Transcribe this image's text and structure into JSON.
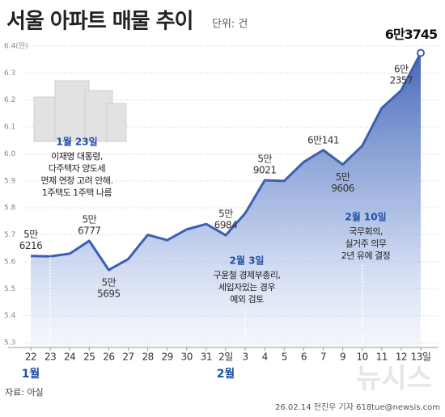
{
  "chart_data": {
    "type": "area",
    "title": "서울 아파트 매물 추이",
    "unit": "단위: 건",
    "categories": [
      "22",
      "23",
      "24",
      "25",
      "26",
      "27",
      "28",
      "29",
      "30",
      "31",
      "2일",
      "3",
      "4",
      "5",
      "6",
      "7",
      "9",
      "10",
      "11",
      "12",
      "13일"
    ],
    "month_labels": [
      "1월",
      "2월"
    ],
    "values": [
      5.6216,
      5.62,
      5.63,
      5.6777,
      5.5695,
      5.61,
      5.7,
      5.68,
      5.72,
      5.74,
      5.6984,
      5.78,
      5.9021,
      5.9,
      5.97,
      6.0141,
      5.9606,
      6.03,
      6.17,
      6.2357,
      6.3745
    ],
    "value_labels": [
      [
        "5만",
        "6216"
      ],
      null,
      null,
      [
        "5만",
        "6777"
      ],
      [
        "5만",
        "5695"
      ],
      null,
      null,
      null,
      null,
      null,
      [
        "5만",
        "6984"
      ],
      null,
      [
        "5만",
        "9021"
      ],
      null,
      null,
      [
        "6만141"
      ],
      [
        "5만",
        "9606"
      ],
      null,
      null,
      [
        "6만",
        "2357"
      ],
      [
        "6만3745"
      ]
    ],
    "color": "#3b5fb3",
    "ylim": [
      5.3,
      6.4
    ],
    "yticks": [
      {
        "value": 6.4,
        "label": "6.4(만)"
      },
      6.3,
      6.2,
      6.1,
      {
        "value": 6.0,
        "label": "6.0"
      },
      5.9,
      5.8,
      5.7,
      5.6,
      5.5,
      5.4,
      5.3
    ],
    "grid": true,
    "annotations": [
      {
        "title": "1월 23일",
        "lines": [
          "이재명 대통령,",
          "다주택자 양도세",
          "면제 연장 고려 안해.",
          "1주택도 1주택 나름"
        ]
      },
      {
        "title": "2월 3일",
        "lines": [
          "구윤철 경제부총리,",
          "세입자있는 경우",
          "예외 검토"
        ]
      },
      {
        "title": "2월 10일",
        "lines": [
          "국무회의,",
          "실거주 의무",
          "2년 유예 결정"
        ]
      }
    ],
    "source": "자료: 아실",
    "credit": "26.02.14 전진우 기자 618tue@newsis.com",
    "watermark": "뉴시스"
  }
}
